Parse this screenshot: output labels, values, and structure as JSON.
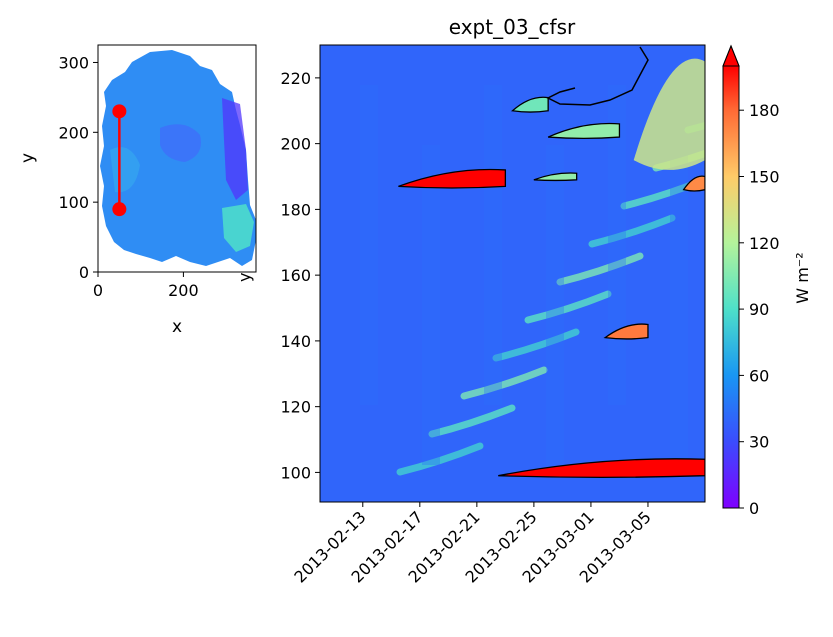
{
  "chart_data": [
    {
      "type": "map",
      "title": "",
      "xlabel": "x",
      "ylabel": "y",
      "xlim": [
        0,
        370
      ],
      "ylim": [
        0,
        325
      ],
      "xticks": [
        "0",
        "200"
      ],
      "yticks": [
        "0",
        "100",
        "200",
        "300"
      ],
      "xticks_values": [
        0,
        200
      ],
      "yticks_values": [
        0,
        100,
        200,
        300
      ],
      "partial_tick_label": "y",
      "transect": {
        "color": "#ff0000",
        "points": [
          {
            "x": 50,
            "y": 230
          },
          {
            "x": 50,
            "y": 90
          }
        ]
      }
    },
    {
      "type": "heatmap",
      "title": "expt_03_cfsr",
      "xlabel": "",
      "ylabel": "",
      "ylim": [
        91,
        230
      ],
      "xlim": [
        "2013-02-10",
        "2013-03-09"
      ],
      "xticks": [
        "2013-02-13",
        "2013-02-17",
        "2013-02-21",
        "2013-02-25",
        "2013-03-01",
        "2013-03-05"
      ],
      "yticks": [
        "100",
        "120",
        "140",
        "160",
        "180",
        "200",
        "220"
      ],
      "yticks_values": [
        100,
        120,
        140,
        160,
        180,
        200,
        220
      ],
      "colorbar": {
        "label": "W m⁻²",
        "colormap": "rainbow",
        "range": [
          0,
          200
        ],
        "ticks": [
          "0",
          "30",
          "60",
          "90",
          "120",
          "150",
          "180"
        ],
        "ticks_values": [
          0,
          30,
          60,
          90,
          120,
          150,
          180
        ],
        "extend": "max"
      },
      "background_level": 40,
      "features": [
        {
          "x0": "2013-02-15T12:00",
          "x1": "2013-02-23T00:00",
          "y0": 187,
          "y1": 192,
          "level": 200,
          "contour": true
        },
        {
          "x0": "2013-02-22T12:00",
          "x1": "2013-03-09T00:00",
          "y0": 99,
          "y1": 104,
          "level": 200,
          "contour": true
        },
        {
          "x0": "2013-03-02T00:00",
          "x1": "2013-03-05T00:00",
          "y0": 141,
          "y1": 145,
          "level": 175,
          "contour": true
        },
        {
          "x0": "2013-03-07T12:00",
          "x1": "2013-03-09T00:00",
          "y0": 186,
          "y1": 190,
          "level": 170,
          "contour": true
        },
        {
          "x0": "2013-02-23T12:00",
          "x1": "2013-02-26T00:00",
          "y0": 210,
          "y1": 214,
          "level": 100,
          "contour": true
        },
        {
          "x0": "2013-02-26T00:00",
          "x1": "2013-03-03T00:00",
          "y0": 202,
          "y1": 206,
          "level": 110,
          "contour": true
        },
        {
          "x0": "2013-03-04T00:00",
          "x1": "2013-03-09T00:00",
          "y0": 195,
          "y1": 225,
          "level": 130,
          "contour": false
        },
        {
          "x0": "2013-02-25T00:00",
          "x1": "2013-02-28T00:00",
          "y0": 189,
          "y1": 191,
          "level": 110,
          "contour": true
        }
      ]
    }
  ]
}
